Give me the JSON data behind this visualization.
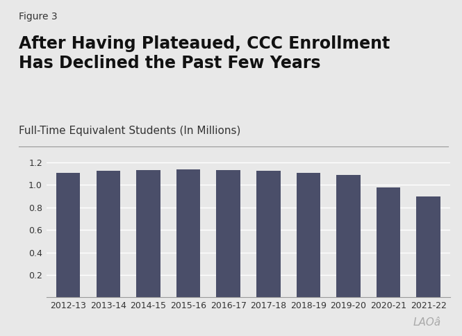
{
  "figure_label": "Figure 3",
  "title_line1": "After Having Plateaued, CCC Enrollment",
  "title_line2": "Has Declined the Past Few Years",
  "subtitle": "Full-Time Equivalent Students (In Millions)",
  "categories": [
    "2012-13",
    "2013-14",
    "2014-15",
    "2015-16",
    "2016-17",
    "2017-18",
    "2018-19",
    "2019-20",
    "2020-21",
    "2021-22"
  ],
  "values": [
    1.11,
    1.125,
    1.135,
    1.14,
    1.13,
    1.125,
    1.11,
    1.09,
    0.975,
    0.895
  ],
  "bar_color": "#4a4e69",
  "background_color": "#e8e8e8",
  "ylim": [
    0,
    1.3
  ],
  "yticks": [
    0.2,
    0.4,
    0.6,
    0.8,
    1.0,
    1.2
  ],
  "grid_color": "#ffffff",
  "figure_label_fontsize": 10,
  "title_fontsize": 17,
  "subtitle_fontsize": 11,
  "tick_fontsize": 9,
  "watermark_text": "LAOâ",
  "watermark_fontsize": 11
}
